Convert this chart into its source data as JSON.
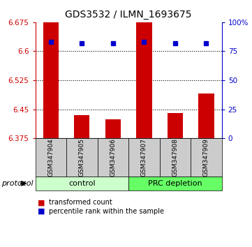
{
  "title": "GDS3532 / ILMN_1693675",
  "samples": [
    "GSM347904",
    "GSM347905",
    "GSM347906",
    "GSM347907",
    "GSM347908",
    "GSM347909"
  ],
  "bar_base": 6.375,
  "bar_heights": [
    6.675,
    6.435,
    6.425,
    6.675,
    6.44,
    6.49
  ],
  "percentile_values": [
    83,
    82,
    82,
    83,
    82,
    82
  ],
  "ylim_left": [
    6.375,
    6.675
  ],
  "ylim_right": [
    0,
    100
  ],
  "yticks_left": [
    6.375,
    6.45,
    6.525,
    6.6,
    6.675
  ],
  "yticks_right": [
    0,
    25,
    50,
    75,
    100
  ],
  "ytick_labels_left": [
    "6.375",
    "6.45",
    "6.525",
    "6.6",
    "6.675"
  ],
  "ytick_labels_right": [
    "0",
    "25",
    "50",
    "75",
    "100%"
  ],
  "grid_lines": [
    6.6,
    6.525,
    6.45,
    6.375
  ],
  "bar_color": "#cc0000",
  "percentile_color": "#0000cc",
  "control_count": 3,
  "prc_count": 3,
  "control_label": "control",
  "prc_label": "PRC depletion",
  "control_color": "#ccffcc",
  "prc_color": "#66ff66",
  "sample_bg_color": "#cccccc",
  "legend_bar_label": "transformed count",
  "legend_dot_label": "percentile rank within the sample",
  "protocol_label": "protocol"
}
